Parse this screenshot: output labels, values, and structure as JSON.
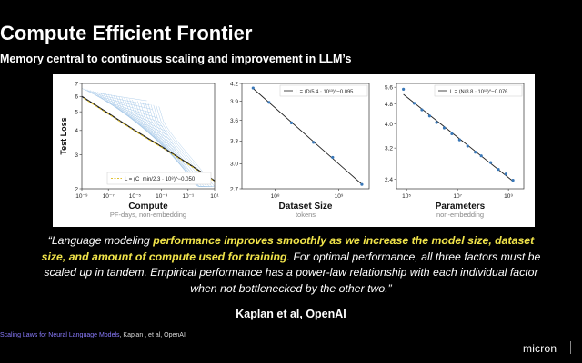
{
  "slide": {
    "title": "Compute Efficient Frontier",
    "subtitle": "Memory central to continuous scaling and improvement in LLM’s"
  },
  "quote": {
    "open": "“Language modeling ",
    "highlight1": "performance improves smoothly as we increase the model size, dataset size, and amount of compute used for training",
    "rest": ". For optimal performance, all three factors must be scaled up in tandem. Empirical performance has a power-law relationship with each individual factor when not bottlenecked by the other two.”"
  },
  "attribution": "Kaplan et al, OpenAI",
  "source": {
    "link_text": "Scaling Laws for Neural Language Models",
    "rest": ", Kaplan , et al, OpenAI"
  },
  "logo": "micron",
  "colors": {
    "fit_line": "#1f1f1f",
    "data_line": "#3a78b8",
    "frontier_fit": "#e0c233",
    "highlight": "#f1e44a"
  },
  "chart_data": [
    {
      "type": "line",
      "xlabel": "Compute",
      "xlabel_sub": "PF-days, non-embedding",
      "ylabel": "Test Loss",
      "x_scale": "log",
      "y_scale": "log",
      "xlim": [
        1e-09,
        10
      ],
      "ylim": [
        2,
        7
      ],
      "x_ticks": [
        "10⁻⁹",
        "10⁻⁷",
        "10⁻⁵",
        "10⁻³",
        "10⁻¹",
        "10¹"
      ],
      "y_ticks": [
        "2",
        "3",
        "4",
        "5",
        "6",
        "7"
      ],
      "legend": "L = (C_min/2.3 · 10⁸)^−0.050",
      "legend_position": "bottom-left",
      "frontier": {
        "x": [
          1e-09,
          1e-07,
          1e-05,
          0.001,
          0.1,
          10
        ],
        "y": [
          6.0,
          4.9,
          4.0,
          3.3,
          2.7,
          2.2
        ]
      }
    },
    {
      "type": "scatter",
      "xlabel": "Dataset Size",
      "xlabel_sub": "tokens",
      "x_scale": "log",
      "y_scale": "log",
      "xlim": [
        30000000.0,
        3000000000.0
      ],
      "ylim": [
        2.7,
        4.2
      ],
      "x_ticks": [
        "10⁸",
        "10⁹"
      ],
      "y_ticks": [
        "2.7",
        "3.0",
        "3.3",
        "3.6",
        "3.9",
        "4.2"
      ],
      "legend": "L = (D/5.4 · 10¹³)^−0.095",
      "legend_position": "top-right",
      "points": {
        "x": [
          45000000.0,
          80000000.0,
          180000000.0,
          400000000.0,
          800000000.0,
          2300000000.0
        ],
        "y": [
          4.12,
          3.88,
          3.56,
          3.28,
          3.08,
          2.75
        ]
      }
    },
    {
      "type": "scatter",
      "xlabel": "Parameters",
      "xlabel_sub": "non-embedding",
      "x_scale": "log",
      "y_scale": "log",
      "xlim": [
        40000.0,
        4000000000.0
      ],
      "ylim": [
        2.2,
        5.8
      ],
      "x_ticks": [
        "10⁵",
        "10⁷",
        "10⁹"
      ],
      "y_ticks": [
        "2.4",
        "3.2",
        "4.0",
        "4.8",
        "5.6"
      ],
      "legend": "L = (N/8.8 · 10¹³)^−0.076",
      "legend_position": "top-right",
      "points": {
        "x": [
          75000.0,
          200000.0,
          400000.0,
          800000.0,
          1500000.0,
          3000000.0,
          6000000.0,
          12000000.0,
          25000000.0,
          50000000.0,
          85000000.0,
          200000000.0,
          400000000.0,
          800000000.0,
          1500000000.0
        ],
        "y": [
          5.5,
          4.83,
          4.55,
          4.3,
          4.05,
          3.85,
          3.65,
          3.45,
          3.26,
          3.08,
          2.98,
          2.8,
          2.63,
          2.52,
          2.38
        ]
      }
    }
  ]
}
